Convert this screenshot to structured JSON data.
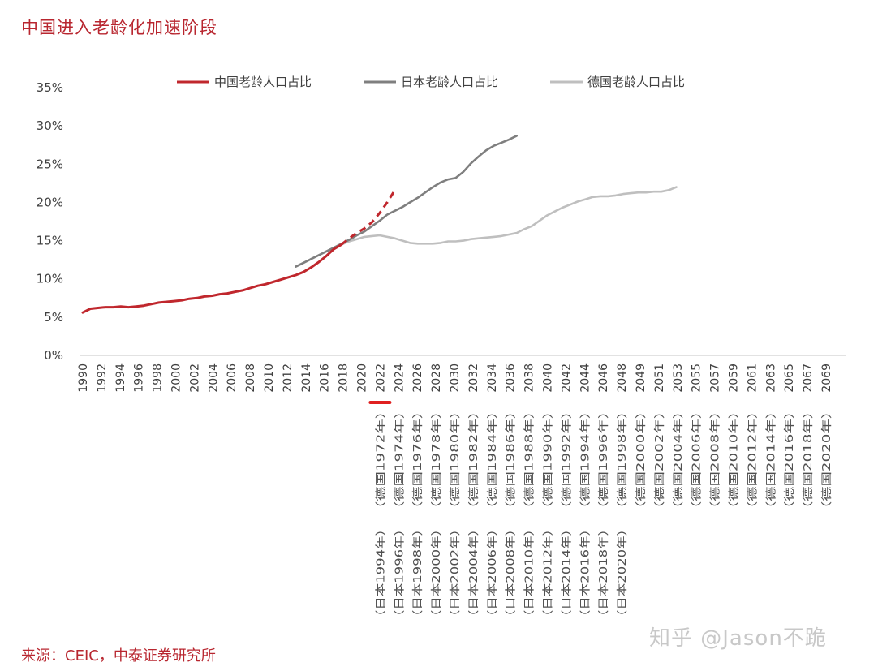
{
  "title": "中国进入老龄化加速阶段",
  "source": "来源：CEIC，中泰证券研究所",
  "watermark": "知乎 @Jason不跪",
  "chart_data": {
    "type": "line",
    "title": "中国进入老龄化加速阶段",
    "xlabel": "",
    "ylabel": "",
    "ylim": [
      0,
      35
    ],
    "yticks": [
      "0%",
      "5%",
      "10%",
      "15%",
      "20%",
      "25%",
      "30%",
      "35%"
    ],
    "grid": false,
    "legend_position": "top",
    "x_labels_row1": [
      "1990",
      "1992",
      "1994",
      "1996",
      "1998",
      "2000",
      "2002",
      "2004",
      "2006",
      "2008",
      "2010",
      "2012",
      "2014",
      "2016",
      "2018",
      "2020",
      "2022",
      "2024",
      "2026",
      "2028",
      "2030",
      "2032",
      "2034",
      "2036",
      "2038",
      "2040",
      "2042",
      "2044",
      "2046",
      "2048",
      "2049",
      "2051",
      "2053",
      "2055",
      "2057",
      "2059",
      "2061",
      "2063",
      "2065",
      "2067",
      "2069"
    ],
    "x_labels_row2": [
      "（德国1972年）",
      "（德国1974年）",
      "（德国1976年）",
      "（德国1978年）",
      "（德国1980年）",
      "（德国1982年）",
      "（德国1984年）",
      "（德国1986年）",
      "（德国1988年）",
      "（德国1990年）",
      "（德国1992年）",
      "（德国1994年）",
      "（德国1996年）",
      "（德国1998年）",
      "（德国2000年）",
      "（德国2002年）",
      "（德国2004年）",
      "（德国2006年）",
      "（德国2008年）",
      "（德国2010年）",
      "（德国2012年）",
      "（德国2014年）",
      "（德国2016年）",
      "（德国2018年）",
      "（德国2020年）"
    ],
    "x_labels_row3": [
      "（日本1994年）",
      "（日本1996年）",
      "（日本1998年）",
      "（日本2000年）",
      "（日本2002年）",
      "（日本2004年）",
      "（日本2006年）",
      "（日本2008年）",
      "（日本2010年）",
      "（日本2012年）",
      "（日本2014年）",
      "（日本2016年）",
      "（日本2018年）",
      "（日本2020年）"
    ],
    "highlight_label_index": 16,
    "series": [
      {
        "name": "中国老龄人口占比",
        "color": "#c0272d",
        "start_index": 0,
        "values": [
          5.6,
          6.1,
          6.2,
          6.3,
          6.3,
          6.4,
          6.3,
          6.4,
          6.5,
          6.7,
          6.9,
          7.0,
          7.1,
          7.2,
          7.4,
          7.5,
          7.7,
          7.8,
          8.0,
          8.1,
          8.3,
          8.5,
          8.8,
          9.1,
          9.3,
          9.6,
          9.9,
          10.2,
          10.5,
          10.9,
          11.5,
          12.2,
          13.0,
          13.9,
          14.5
        ],
        "dashed_start_index": 34,
        "dashed_values": [
          14.5,
          15.3,
          16.0,
          16.6,
          17.4,
          18.6,
          20.0,
          21.6
        ]
      },
      {
        "name": "日本老龄人口占比",
        "color": "#7f7f7f",
        "start_index": 28,
        "values": [
          11.6,
          12.1,
          12.6,
          13.1,
          13.6,
          14.1,
          14.6,
          15.1,
          15.7,
          16.2,
          16.9,
          17.6,
          18.4,
          18.9,
          19.4,
          20.0,
          20.6,
          21.3,
          22.0,
          22.6,
          23.0,
          23.2,
          24.0,
          25.1,
          26.0,
          26.8,
          27.4,
          27.8,
          28.2,
          28.7
        ]
      },
      {
        "name": "德国老龄人口占比",
        "color": "#bfbfbf",
        "start_index": 28,
        "values": [
          11.6,
          12.1,
          12.6,
          13.1,
          13.6,
          14.1,
          14.5,
          14.9,
          15.2,
          15.5,
          15.6,
          15.7,
          15.5,
          15.3,
          15.0,
          14.7,
          14.6,
          14.6,
          14.6,
          14.7,
          14.9,
          14.9,
          15.0,
          15.2,
          15.3,
          15.4,
          15.5,
          15.6,
          15.8,
          16.0,
          16.5,
          16.9,
          17.6,
          18.3,
          18.8,
          19.3,
          19.7,
          20.1,
          20.4,
          20.7,
          20.8,
          20.8,
          20.9,
          21.1,
          21.2,
          21.3,
          21.3,
          21.4,
          21.4,
          21.6,
          22.0
        ]
      }
    ]
  }
}
